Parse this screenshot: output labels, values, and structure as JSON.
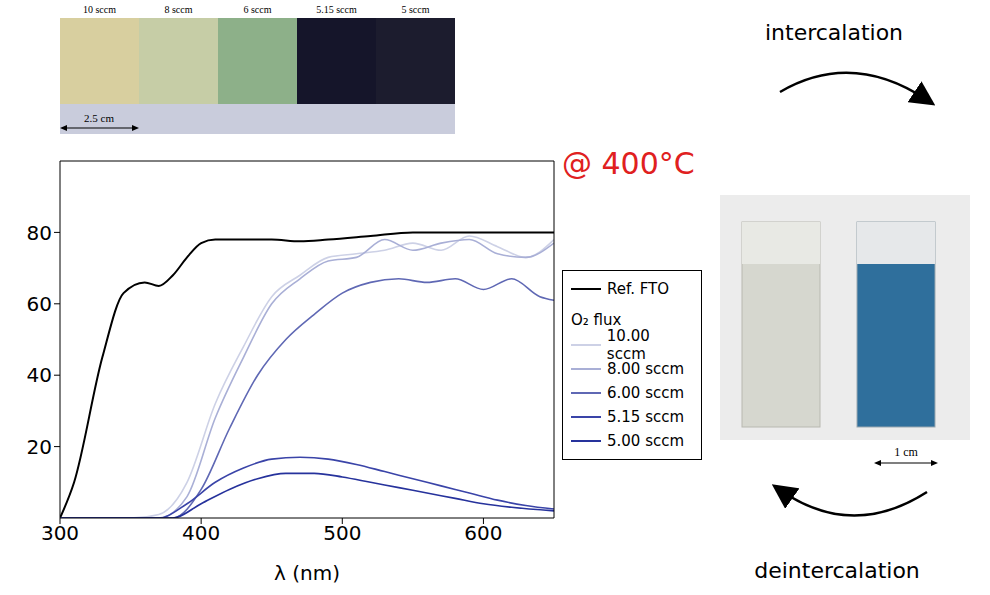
{
  "chart_data": {
    "type": "line",
    "annotation": "@ 400°C",
    "x_label": "λ (nm)",
    "legend_title": "O₂ flux",
    "legend": "right",
    "grid": false,
    "xlim": [
      300,
      650
    ],
    "xticks": [
      300,
      400,
      500,
      600
    ],
    "ylim": [
      0,
      100
    ],
    "yticks": [
      20,
      40,
      60,
      80
    ],
    "series": [
      {
        "name": "Ref. FTO",
        "color": "#000000",
        "x": [
          300,
          310,
          330,
          345,
          360,
          370,
          380,
          390,
          400,
          410,
          430,
          450,
          470,
          490,
          520,
          550,
          600,
          650
        ],
        "values": [
          0,
          10,
          45,
          63,
          66,
          65,
          68,
          73,
          77,
          78,
          78,
          78,
          77.5,
          78,
          79,
          80,
          80,
          80
        ]
      },
      {
        "name": "10.00 sccm",
        "color": "#cdd1e6",
        "x": [
          300,
          350,
          370,
          390,
          410,
          430,
          450,
          470,
          490,
          510,
          530,
          550,
          570,
          590,
          610,
          630,
          650
        ],
        "values": [
          0,
          0,
          1,
          10,
          32,
          48,
          62,
          68,
          73,
          74,
          75,
          77,
          75,
          79,
          76,
          73,
          78
        ]
      },
      {
        "name": "8.00 sccm",
        "color": "#a9afd6",
        "x": [
          300,
          370,
          390,
          410,
          430,
          450,
          470,
          490,
          510,
          530,
          550,
          570,
          590,
          610,
          630,
          650
        ],
        "values": [
          0,
          0,
          6,
          28,
          45,
          60,
          67,
          72,
          73,
          78,
          75,
          77,
          78,
          74,
          73,
          77
        ]
      },
      {
        "name": "6.00 sccm",
        "color": "#5f68b4",
        "x": [
          300,
          380,
          400,
          420,
          440,
          460,
          480,
          500,
          520,
          540,
          560,
          580,
          600,
          620,
          640,
          650
        ],
        "values": [
          0,
          0,
          8,
          25,
          40,
          50,
          57,
          63,
          66,
          67,
          66,
          67,
          64,
          67,
          62,
          61
        ]
      },
      {
        "name": "5.15 sccm",
        "color": "#3a44a8",
        "x": [
          300,
          370,
          390,
          410,
          430,
          450,
          470,
          490,
          510,
          530,
          550,
          570,
          590,
          610,
          630,
          650
        ],
        "values": [
          0,
          0,
          4,
          10,
          14,
          16.5,
          17,
          16.5,
          15,
          13,
          11,
          9,
          7,
          5,
          3.5,
          2.5
        ]
      },
      {
        "name": "5.00 sccm",
        "color": "#26329c",
        "x": [
          300,
          380,
          400,
          420,
          440,
          460,
          480,
          500,
          520,
          540,
          560,
          580,
          600,
          620,
          650
        ],
        "values": [
          0,
          0,
          4,
          8,
          11,
          12.5,
          12.5,
          11.5,
          10,
          8.5,
          7,
          5.5,
          4,
          3,
          2
        ]
      }
    ]
  },
  "photos": {
    "top_labels": [
      "10 sccm",
      "8 sccm",
      "6 sccm",
      "5.15 sccm",
      "5 sccm"
    ],
    "top_scale": "2.5 cm",
    "right_scale": "1 cm",
    "arrow_top": "intercalation",
    "arrow_bottom": "deintercalation"
  }
}
